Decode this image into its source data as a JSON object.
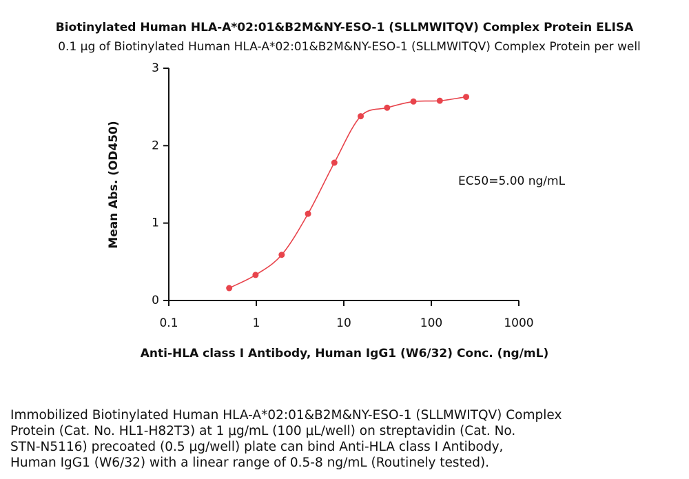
{
  "chart_data": {
    "type": "scatter",
    "title": "Biotinylated Human HLA-A*02:01&B2M&NY-ESO-1 (SLLMWITQV) Complex Protein ELISA",
    "subtitle": "0.1 μg of Biotinylated Human HLA-A*02:01&B2M&NY-ESO-1 (SLLMWITQV) Complex Protein per well",
    "x_label": "Anti-HLA class I Antibody, Human IgG1 (W6/32) Conc. (ng/mL)",
    "y_label": "Mean Abs. (OD450)",
    "annotation": "EC50=5.00  ng/mL",
    "x": [
      0.49,
      0.98,
      1.95,
      3.9,
      7.8,
      15.6,
      31.25,
      62.5,
      125,
      250
    ],
    "series": [
      {
        "name": "Anti-HLA class I Antibody",
        "color": "#e8444c",
        "values": [
          0.16,
          0.33,
          0.59,
          1.12,
          1.78,
          2.38,
          2.49,
          2.57,
          2.58,
          2.63
        ]
      }
    ],
    "xscale": "log",
    "xlim": [
      0.1,
      1000
    ],
    "xticks": [
      0.1,
      1,
      10,
      100,
      1000
    ],
    "ylim": [
      0,
      3
    ],
    "yticks": [
      0,
      1,
      2,
      3
    ],
    "caption": [
      "Immobilized Biotinylated Human HLA-A*02:01&B2M&NY-ESO-1 (SLLMWITQV) Complex",
      "Protein (Cat. No. HL1-H82T3) at 1 μg/mL (100 μL/well) on streptavidin (Cat. No.",
      "STN-N5116) precoated (0.5 μg/well) plate can bind Anti-HLA class I Antibody,",
      "Human IgG1 (W6/32) with a linear range of 0.5-8 ng/mL (Routinely tested)."
    ]
  }
}
